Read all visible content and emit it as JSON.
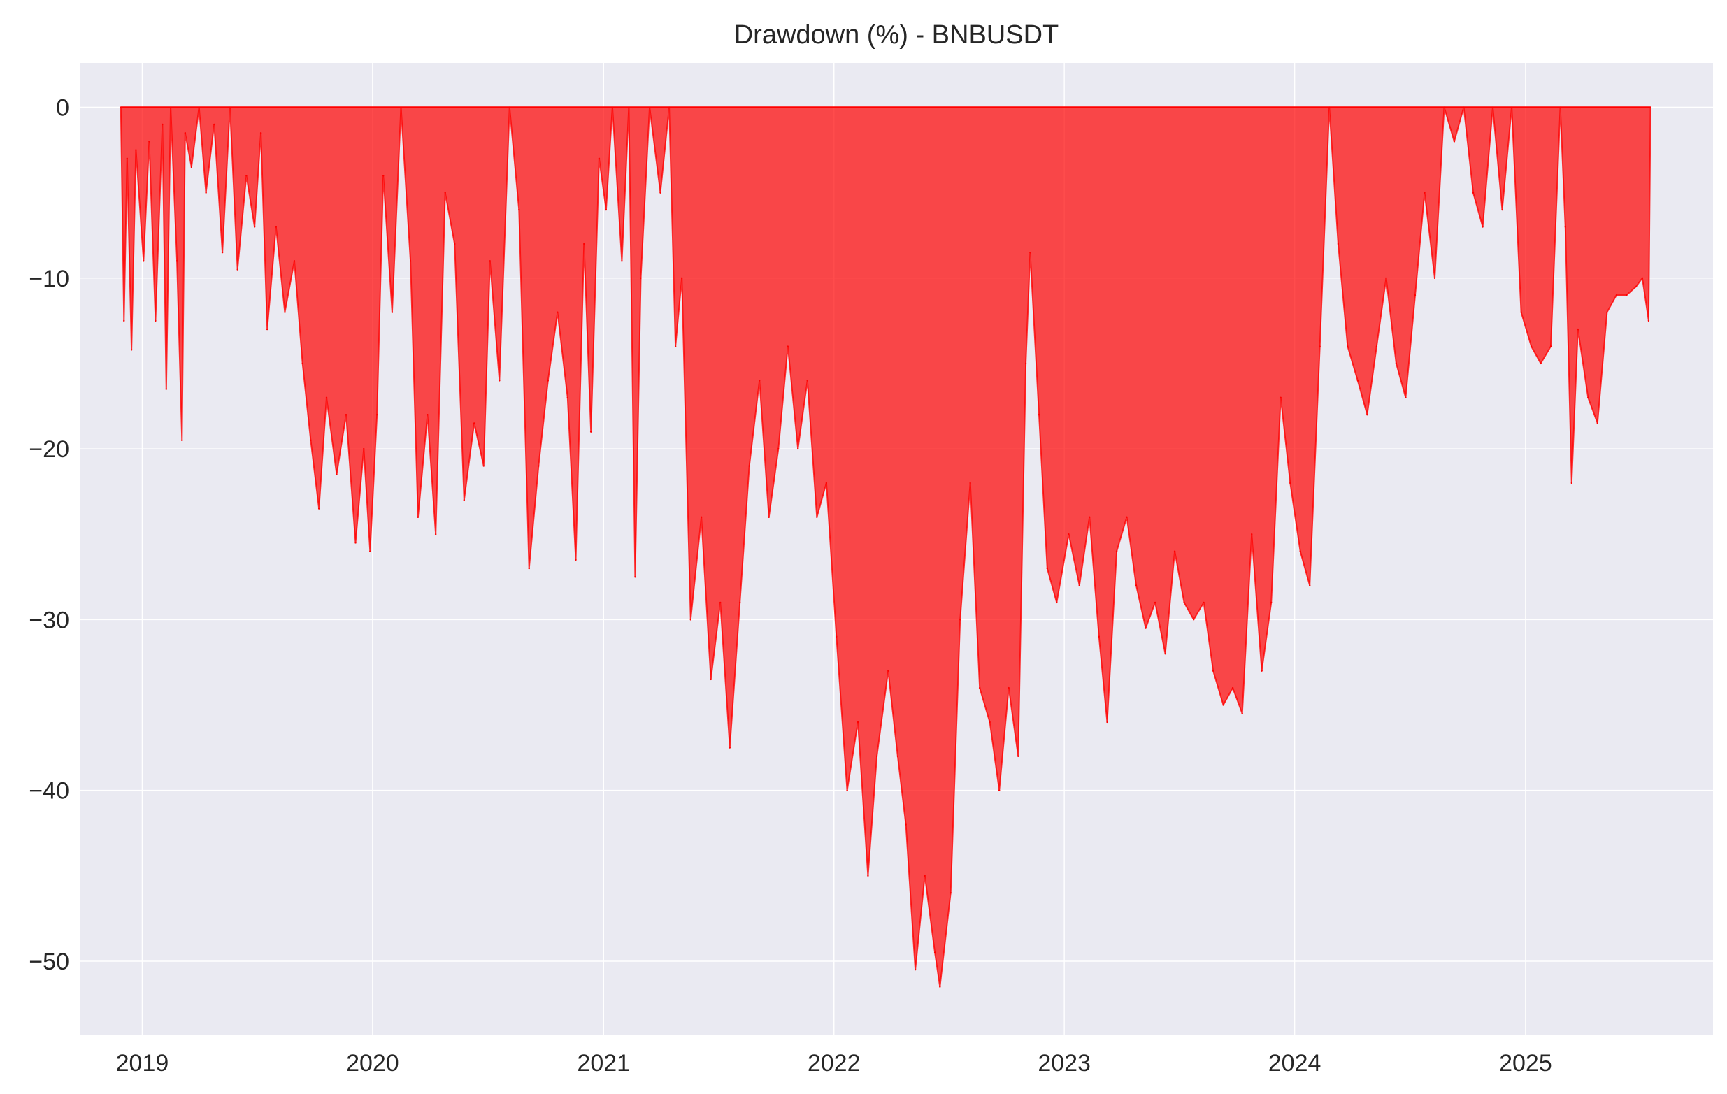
{
  "chart_data": {
    "type": "area",
    "title": "Drawdown (%) - BNBUSDT",
    "xlabel": "",
    "ylabel": "",
    "x_range": [
      "2018-09-25",
      "2025-10-25"
    ],
    "ylim": [
      -54.3,
      2.6
    ],
    "x_ticks": [
      {
        "value": "2019-01-01",
        "label": "2019"
      },
      {
        "value": "2020-01-01",
        "label": "2020"
      },
      {
        "value": "2021-01-01",
        "label": "2021"
      },
      {
        "value": "2022-01-01",
        "label": "2022"
      },
      {
        "value": "2023-01-01",
        "label": "2023"
      },
      {
        "value": "2024-01-01",
        "label": "2024"
      },
      {
        "value": "2025-01-01",
        "label": "2025"
      }
    ],
    "y_ticks": [
      {
        "value": 0,
        "label": "0"
      },
      {
        "value": -10,
        "label": "−10"
      },
      {
        "value": -20,
        "label": "−20"
      },
      {
        "value": -30,
        "label": "−30"
      },
      {
        "value": -40,
        "label": "−40"
      },
      {
        "value": -50,
        "label": "−50"
      }
    ],
    "grid": true,
    "legend": "none",
    "colors": {
      "fill": "#ff0000",
      "line": "#ff0000",
      "background": "#eaeaf2",
      "grid": "#ffffff"
    },
    "series": [
      {
        "values": [
          {
            "x": "2018-11-28",
            "y": 0
          },
          {
            "x": "2018-12-03",
            "y": -12.5
          },
          {
            "x": "2018-12-08",
            "y": -3.0
          },
          {
            "x": "2018-12-15",
            "y": -14.2
          },
          {
            "x": "2018-12-22",
            "y": -2.5
          },
          {
            "x": "2019-01-03",
            "y": -9.0
          },
          {
            "x": "2019-01-12",
            "y": -2.0
          },
          {
            "x": "2019-01-22",
            "y": -12.5
          },
          {
            "x": "2019-02-02",
            "y": -1.0
          },
          {
            "x": "2019-02-08",
            "y": -16.5
          },
          {
            "x": "2019-02-15",
            "y": 0
          },
          {
            "x": "2019-02-25",
            "y": -9.0
          },
          {
            "x": "2019-03-05",
            "y": -19.5
          },
          {
            "x": "2019-03-10",
            "y": -1.5
          },
          {
            "x": "2019-03-20",
            "y": -3.5
          },
          {
            "x": "2019-04-01",
            "y": 0
          },
          {
            "x": "2019-04-12",
            "y": -5.0
          },
          {
            "x": "2019-04-25",
            "y": -1.0
          },
          {
            "x": "2019-05-08",
            "y": -8.5
          },
          {
            "x": "2019-05-20",
            "y": 0
          },
          {
            "x": "2019-06-01",
            "y": -9.5
          },
          {
            "x": "2019-06-15",
            "y": -4.0
          },
          {
            "x": "2019-06-28",
            "y": -7.0
          },
          {
            "x": "2019-07-08",
            "y": -1.5
          },
          {
            "x": "2019-07-18",
            "y": -13.0
          },
          {
            "x": "2019-08-01",
            "y": -7.0
          },
          {
            "x": "2019-08-15",
            "y": -12.0
          },
          {
            "x": "2019-08-30",
            "y": -9.0
          },
          {
            "x": "2019-09-12",
            "y": -15.0
          },
          {
            "x": "2019-09-25",
            "y": -19.5
          },
          {
            "x": "2019-10-08",
            "y": -23.5
          },
          {
            "x": "2019-10-20",
            "y": -17.0
          },
          {
            "x": "2019-11-05",
            "y": -21.5
          },
          {
            "x": "2019-11-20",
            "y": -18.0
          },
          {
            "x": "2019-12-05",
            "y": -25.5
          },
          {
            "x": "2019-12-18",
            "y": -20.0
          },
          {
            "x": "2019-12-28",
            "y": -26.0
          },
          {
            "x": "2020-01-08",
            "y": -18.0
          },
          {
            "x": "2020-01-18",
            "y": -4.0
          },
          {
            "x": "2020-02-01",
            "y": -12.0
          },
          {
            "x": "2020-02-15",
            "y": 0
          },
          {
            "x": "2020-03-01",
            "y": -9.0
          },
          {
            "x": "2020-03-13",
            "y": -24.0
          },
          {
            "x": "2020-03-28",
            "y": -18.0
          },
          {
            "x": "2020-04-10",
            "y": -25.0
          },
          {
            "x": "2020-04-25",
            "y": -5.0
          },
          {
            "x": "2020-05-10",
            "y": -8.0
          },
          {
            "x": "2020-05-25",
            "y": -23.0
          },
          {
            "x": "2020-06-10",
            "y": -18.5
          },
          {
            "x": "2020-06-25",
            "y": -21.0
          },
          {
            "x": "2020-07-05",
            "y": -9.0
          },
          {
            "x": "2020-07-20",
            "y": -16.0
          },
          {
            "x": "2020-08-05",
            "y": 0
          },
          {
            "x": "2020-08-20",
            "y": -6.0
          },
          {
            "x": "2020-09-05",
            "y": -27.0
          },
          {
            "x": "2020-09-20",
            "y": -21.0
          },
          {
            "x": "2020-10-05",
            "y": -16.0
          },
          {
            "x": "2020-10-20",
            "y": -12.0
          },
          {
            "x": "2020-11-05",
            "y": -17.0
          },
          {
            "x": "2020-11-18",
            "y": -26.5
          },
          {
            "x": "2020-12-01",
            "y": -8.0
          },
          {
            "x": "2020-12-12",
            "y": -19.0
          },
          {
            "x": "2020-12-25",
            "y": -3.0
          },
          {
            "x": "2021-01-05",
            "y": -6.0
          },
          {
            "x": "2021-01-15",
            "y": 0
          },
          {
            "x": "2021-01-30",
            "y": -9.0
          },
          {
            "x": "2021-02-10",
            "y": 0
          },
          {
            "x": "2021-02-20",
            "y": -27.5
          },
          {
            "x": "2021-03-01",
            "y": -10.0
          },
          {
            "x": "2021-03-15",
            "y": 0
          },
          {
            "x": "2021-04-01",
            "y": -5.0
          },
          {
            "x": "2021-04-15",
            "y": 0
          },
          {
            "x": "2021-04-25",
            "y": -14.0
          },
          {
            "x": "2021-05-05",
            "y": -10.0
          },
          {
            "x": "2021-05-19",
            "y": -30.0
          },
          {
            "x": "2021-06-05",
            "y": -24.0
          },
          {
            "x": "2021-06-20",
            "y": -33.5
          },
          {
            "x": "2021-07-05",
            "y": -29.0
          },
          {
            "x": "2021-07-20",
            "y": -37.5
          },
          {
            "x": "2021-08-05",
            "y": -29.0
          },
          {
            "x": "2021-08-20",
            "y": -21.0
          },
          {
            "x": "2021-09-05",
            "y": -16.0
          },
          {
            "x": "2021-09-20",
            "y": -24.0
          },
          {
            "x": "2021-10-05",
            "y": -20.0
          },
          {
            "x": "2021-10-20",
            "y": -14.0
          },
          {
            "x": "2021-11-05",
            "y": -20.0
          },
          {
            "x": "2021-11-20",
            "y": -16.0
          },
          {
            "x": "2021-12-05",
            "y": -24.0
          },
          {
            "x": "2021-12-20",
            "y": -22.0
          },
          {
            "x": "2022-01-05",
            "y": -31.0
          },
          {
            "x": "2022-01-22",
            "y": -40.0
          },
          {
            "x": "2022-02-08",
            "y": -36.0
          },
          {
            "x": "2022-02-24",
            "y": -45.0
          },
          {
            "x": "2022-03-10",
            "y": -38.0
          },
          {
            "x": "2022-03-28",
            "y": -33.0
          },
          {
            "x": "2022-04-12",
            "y": -38.0
          },
          {
            "x": "2022-04-25",
            "y": -42.0
          },
          {
            "x": "2022-05-10",
            "y": -50.5
          },
          {
            "x": "2022-05-25",
            "y": -45.0
          },
          {
            "x": "2022-06-10",
            "y": -49.5
          },
          {
            "x": "2022-06-18",
            "y": -51.5
          },
          {
            "x": "2022-07-05",
            "y": -46.0
          },
          {
            "x": "2022-07-20",
            "y": -30.0
          },
          {
            "x": "2022-08-05",
            "y": -22.0
          },
          {
            "x": "2022-08-20",
            "y": -34.0
          },
          {
            "x": "2022-09-05",
            "y": -36.0
          },
          {
            "x": "2022-09-20",
            "y": -40.0
          },
          {
            "x": "2022-10-05",
            "y": -34.0
          },
          {
            "x": "2022-10-20",
            "y": -38.0
          },
          {
            "x": "2022-11-01",
            "y": -15.0
          },
          {
            "x": "2022-11-08",
            "y": -8.5
          },
          {
            "x": "2022-11-22",
            "y": -18.0
          },
          {
            "x": "2022-12-05",
            "y": -27.0
          },
          {
            "x": "2022-12-20",
            "y": -29.0
          },
          {
            "x": "2023-01-08",
            "y": -25.0
          },
          {
            "x": "2023-01-25",
            "y": -28.0
          },
          {
            "x": "2023-02-10",
            "y": -24.0
          },
          {
            "x": "2023-02-25",
            "y": -31.0
          },
          {
            "x": "2023-03-10",
            "y": -36.0
          },
          {
            "x": "2023-03-25",
            "y": -26.0
          },
          {
            "x": "2023-04-10",
            "y": -24.0
          },
          {
            "x": "2023-04-25",
            "y": -28.0
          },
          {
            "x": "2023-05-10",
            "y": -30.5
          },
          {
            "x": "2023-05-25",
            "y": -29.0
          },
          {
            "x": "2023-06-10",
            "y": -32.0
          },
          {
            "x": "2023-06-25",
            "y": -26.0
          },
          {
            "x": "2023-07-10",
            "y": -29.0
          },
          {
            "x": "2023-07-25",
            "y": -30.0
          },
          {
            "x": "2023-08-10",
            "y": -29.0
          },
          {
            "x": "2023-08-25",
            "y": -33.0
          },
          {
            "x": "2023-09-10",
            "y": -35.0
          },
          {
            "x": "2023-09-25",
            "y": -34.0
          },
          {
            "x": "2023-10-10",
            "y": -35.5
          },
          {
            "x": "2023-10-25",
            "y": -25.0
          },
          {
            "x": "2023-11-10",
            "y": -33.0
          },
          {
            "x": "2023-11-25",
            "y": -29.0
          },
          {
            "x": "2023-12-10",
            "y": -17.0
          },
          {
            "x": "2023-12-25",
            "y": -22.0
          },
          {
            "x": "2024-01-10",
            "y": -26.0
          },
          {
            "x": "2024-01-25",
            "y": -28.0
          },
          {
            "x": "2024-02-10",
            "y": -14.0
          },
          {
            "x": "2024-02-25",
            "y": 0
          },
          {
            "x": "2024-03-10",
            "y": -8.0
          },
          {
            "x": "2024-03-25",
            "y": -14.0
          },
          {
            "x": "2024-04-10",
            "y": -16.0
          },
          {
            "x": "2024-04-25",
            "y": -18.0
          },
          {
            "x": "2024-05-10",
            "y": -14.0
          },
          {
            "x": "2024-05-25",
            "y": -10.0
          },
          {
            "x": "2024-06-10",
            "y": -15.0
          },
          {
            "x": "2024-06-25",
            "y": -17.0
          },
          {
            "x": "2024-07-10",
            "y": -11.0
          },
          {
            "x": "2024-07-25",
            "y": -5.0
          },
          {
            "x": "2024-08-10",
            "y": -10.0
          },
          {
            "x": "2024-08-25",
            "y": 0
          },
          {
            "x": "2024-09-10",
            "y": -2.0
          },
          {
            "x": "2024-09-25",
            "y": 0
          },
          {
            "x": "2024-10-10",
            "y": -5.0
          },
          {
            "x": "2024-10-25",
            "y": -7.0
          },
          {
            "x": "2024-11-10",
            "y": 0
          },
          {
            "x": "2024-11-25",
            "y": -6.0
          },
          {
            "x": "2024-12-10",
            "y": 0
          },
          {
            "x": "2024-12-25",
            "y": -12.0
          },
          {
            "x": "2025-01-10",
            "y": -14.0
          },
          {
            "x": "2025-01-25",
            "y": -15.0
          },
          {
            "x": "2025-02-10",
            "y": -14.0
          },
          {
            "x": "2025-02-25",
            "y": 0
          },
          {
            "x": "2025-03-05",
            "y": -7.0
          },
          {
            "x": "2025-03-15",
            "y": -22.0
          },
          {
            "x": "2025-03-25",
            "y": -13.0
          },
          {
            "x": "2025-04-10",
            "y": -17.0
          },
          {
            "x": "2025-04-25",
            "y": -18.5
          },
          {
            "x": "2025-05-10",
            "y": -12.0
          },
          {
            "x": "2025-05-25",
            "y": -11.0
          },
          {
            "x": "2025-06-10",
            "y": -11.0
          },
          {
            "x": "2025-06-25",
            "y": -10.5
          },
          {
            "x": "2025-07-05",
            "y": -10.0
          },
          {
            "x": "2025-07-15",
            "y": -12.5
          },
          {
            "x": "2025-07-18",
            "y": 0
          }
        ]
      }
    ]
  }
}
